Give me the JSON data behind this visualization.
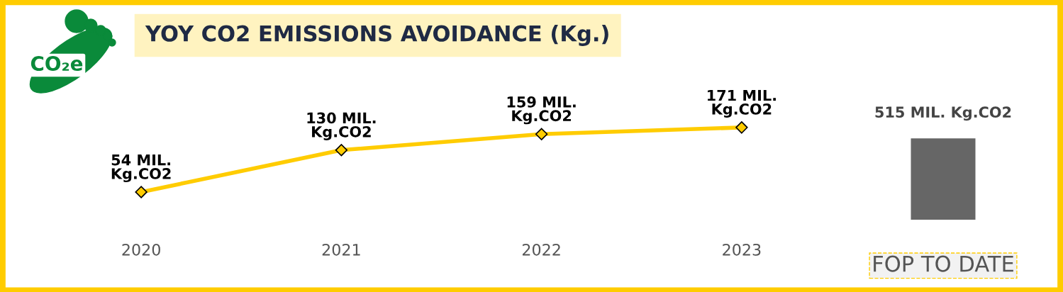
{
  "chart_data": [
    {
      "type": "line",
      "title": "YOY CO2 EMISSIONS AVOIDANCE (Kg.)",
      "categories": [
        "2020",
        "2021",
        "2022",
        "2023"
      ],
      "series": [
        {
          "color": "#ffcc00",
          "values": [
            54,
            130,
            159,
            171
          ],
          "value_labels": [
            "54 MIL.\nKg.CO2",
            "130 MIL.\nKg.CO2",
            "159 MIL.\nKg.CO2",
            "171 MIL.\nKg.CO2"
          ]
        }
      ],
      "marker": "diamond",
      "line_style": "solid",
      "grid": false,
      "legend": false,
      "tick_labels": "x",
      "annotations": [
        "CO₂e"
      ]
    },
    {
      "type": "bar",
      "categories": [
        "FOP TO DATE"
      ],
      "values": [
        515
      ],
      "colors": [
        "#666666"
      ],
      "value_labels": [
        "515 MIL. Kg.CO2"
      ],
      "grid": false,
      "legend": false,
      "tick_labels": "x"
    }
  ]
}
